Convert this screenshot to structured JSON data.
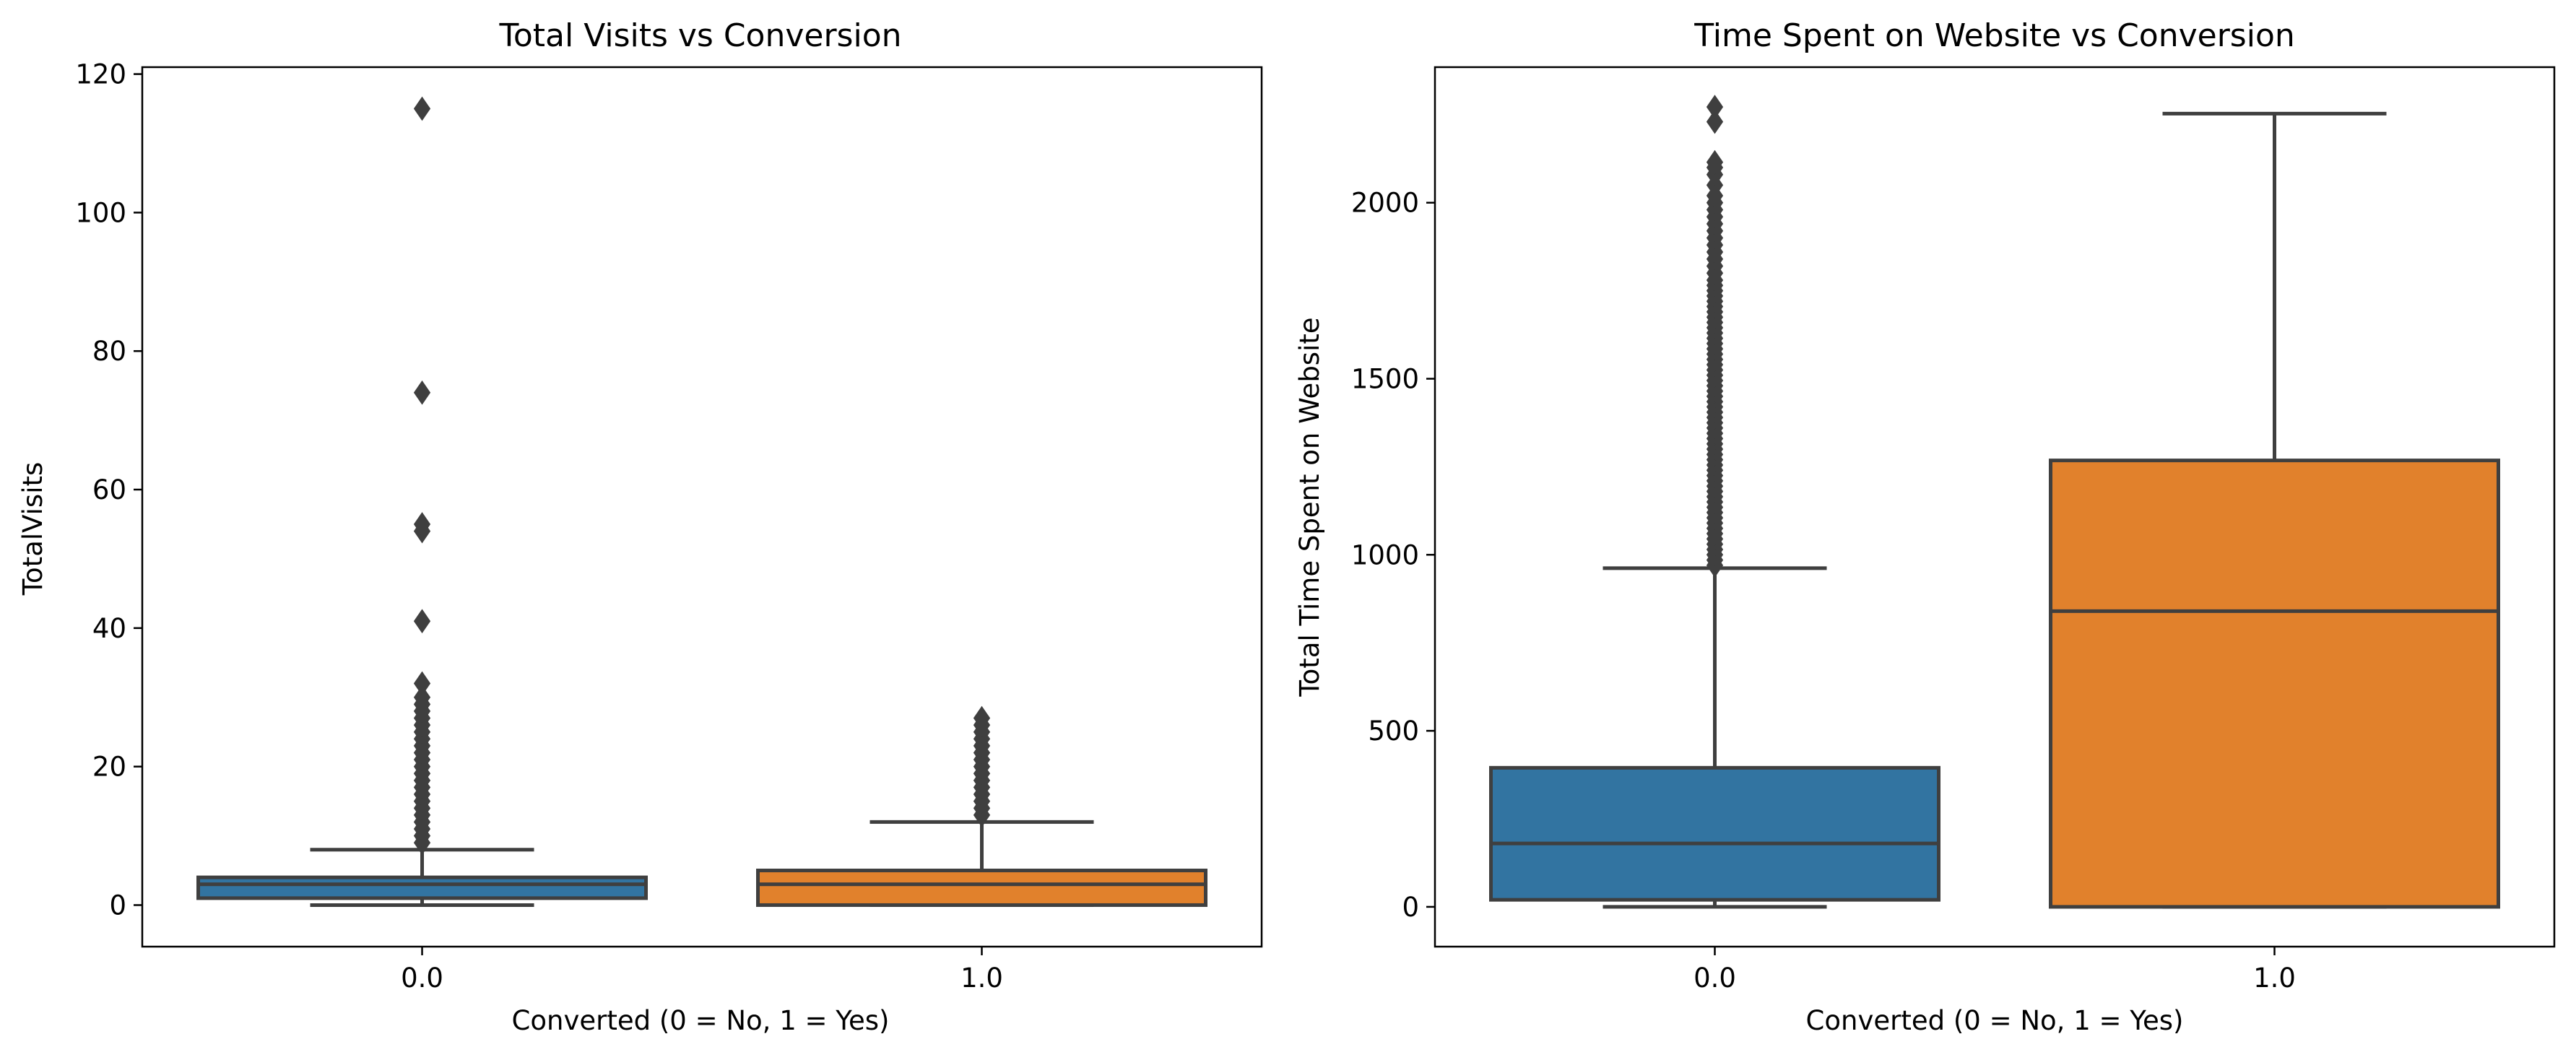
{
  "chart_data": [
    {
      "type": "box",
      "title": "Total Visits vs Conversion",
      "xlabel": "Converted (0 = No, 1 = Yes)",
      "ylabel": "TotalVisits",
      "ylim": [
        -6,
        121
      ],
      "yticks": [
        0,
        20,
        40,
        60,
        80,
        100,
        120
      ],
      "categories": [
        "0.0",
        "1.0"
      ],
      "colors": [
        "#3274a1",
        "#e1812c"
      ],
      "edge_color": "#3f3f3f",
      "boxes": [
        {
          "category": "0.0",
          "whisker_low": 0,
          "q1": 1,
          "median": 3,
          "q3": 4,
          "whisker_high": 8,
          "outliers": [
            9,
            10,
            11,
            12,
            13,
            14,
            15,
            16,
            17,
            18,
            19,
            20,
            21,
            22,
            23,
            24,
            25,
            26,
            27,
            28,
            29,
            30,
            32,
            41,
            54,
            55,
            74,
            115
          ]
        },
        {
          "category": "1.0",
          "whisker_low": 0,
          "q1": 0,
          "median": 3,
          "q3": 5,
          "whisker_high": 12,
          "outliers": [
            13,
            14,
            15,
            16,
            17,
            18,
            19,
            20,
            21,
            22,
            23,
            24,
            25,
            26,
            27
          ]
        }
      ]
    },
    {
      "type": "box",
      "title": "Time Spent on Website vs Conversion",
      "xlabel": "Converted (0 = No, 1 = Yes)",
      "ylabel": "Total Time Spent on Website",
      "ylim": [
        -113,
        2385
      ],
      "yticks": [
        0,
        500,
        1000,
        1500,
        2000
      ],
      "categories": [
        "0.0",
        "1.0"
      ],
      "colors": [
        "#3274a1",
        "#e1812c"
      ],
      "edge_color": "#3f3f3f",
      "boxes": [
        {
          "category": "0.0",
          "whisker_low": 0,
          "q1": 20,
          "median": 180,
          "q3": 395,
          "whisker_high": 962,
          "outliers": [
            970,
            985,
            1000,
            1015,
            1030,
            1045,
            1060,
            1075,
            1090,
            1105,
            1120,
            1135,
            1150,
            1165,
            1180,
            1195,
            1210,
            1225,
            1240,
            1255,
            1270,
            1285,
            1300,
            1315,
            1330,
            1345,
            1360,
            1375,
            1390,
            1405,
            1420,
            1435,
            1450,
            1465,
            1480,
            1495,
            1510,
            1525,
            1540,
            1555,
            1570,
            1585,
            1600,
            1615,
            1630,
            1645,
            1660,
            1675,
            1690,
            1705,
            1720,
            1735,
            1750,
            1765,
            1780,
            1800,
            1820,
            1840,
            1860,
            1880,
            1900,
            1920,
            1940,
            1960,
            1980,
            2000,
            2020,
            2050,
            2080,
            2100,
            2115,
            2230,
            2272
          ]
        },
        {
          "category": "1.0",
          "whisker_low": 0,
          "q1": 0,
          "median": 840,
          "q3": 1268,
          "whisker_high": 2253,
          "outliers": []
        }
      ]
    }
  ]
}
